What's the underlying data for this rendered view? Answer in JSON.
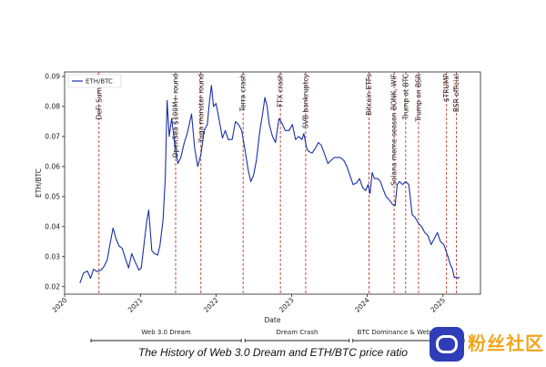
{
  "chart_data": {
    "type": "line",
    "title": "",
    "xlabel": "Date",
    "ylabel": "ETH/BTC",
    "xlim": [
      "2020-01-01",
      "2025-07-01"
    ],
    "ylim": [
      0.0175,
      0.0915
    ],
    "x_ticks": [
      "2020",
      "2021",
      "2022",
      "2023",
      "2024",
      "2025"
    ],
    "y_ticks": [
      "0.02",
      "0.03",
      "0.04",
      "0.05",
      "0.06",
      "0.07",
      "0.08",
      "0.09"
    ],
    "grid": false,
    "legend": {
      "position": "top-left",
      "entries": [
        "ETH/BTC"
      ]
    },
    "series": [
      {
        "name": "ETH/BTC",
        "color": "#1a2fa8",
        "points": [
          [
            "2020-03-15",
            0.0212
          ],
          [
            "2020-04-01",
            0.0245
          ],
          [
            "2020-04-20",
            0.0252
          ],
          [
            "2020-05-05",
            0.0228
          ],
          [
            "2020-05-20",
            0.0258
          ],
          [
            "2020-06-05",
            0.025
          ],
          [
            "2020-06-25",
            0.0255
          ],
          [
            "2020-07-10",
            0.0268
          ],
          [
            "2020-07-25",
            0.029
          ],
          [
            "2020-08-08",
            0.0345
          ],
          [
            "2020-08-22",
            0.0395
          ],
          [
            "2020-09-05",
            0.036
          ],
          [
            "2020-09-20",
            0.0335
          ],
          [
            "2020-10-05",
            0.0328
          ],
          [
            "2020-10-20",
            0.0295
          ],
          [
            "2020-11-05",
            0.0262
          ],
          [
            "2020-11-20",
            0.031
          ],
          [
            "2020-12-05",
            0.0285
          ],
          [
            "2020-12-25",
            0.0255
          ],
          [
            "2021-01-05",
            0.0262
          ],
          [
            "2021-01-20",
            0.035
          ],
          [
            "2021-02-01",
            0.042
          ],
          [
            "2021-02-10",
            0.0455
          ],
          [
            "2021-02-25",
            0.032
          ],
          [
            "2021-03-10",
            0.031
          ],
          [
            "2021-03-25",
            0.0305
          ],
          [
            "2021-04-05",
            0.0335
          ],
          [
            "2021-04-20",
            0.042
          ],
          [
            "2021-05-01",
            0.056
          ],
          [
            "2021-05-10",
            0.082
          ],
          [
            "2021-05-20",
            0.07
          ],
          [
            "2021-06-01",
            0.076
          ],
          [
            "2021-06-15",
            0.068
          ],
          [
            "2021-07-01",
            0.061
          ],
          [
            "2021-07-15",
            0.063
          ],
          [
            "2021-08-01",
            0.068
          ],
          [
            "2021-08-15",
            0.071
          ],
          [
            "2021-09-05",
            0.0775
          ],
          [
            "2021-09-20",
            0.066
          ],
          [
            "2021-10-05",
            0.06
          ],
          [
            "2021-10-20",
            0.064
          ],
          [
            "2021-11-05",
            0.072
          ],
          [
            "2021-11-20",
            0.074
          ],
          [
            "2021-12-01",
            0.082
          ],
          [
            "2021-12-10",
            0.087
          ],
          [
            "2021-12-20",
            0.08
          ],
          [
            "2022-01-01",
            0.081
          ],
          [
            "2022-01-15",
            0.076
          ],
          [
            "2022-02-01",
            0.0695
          ],
          [
            "2022-02-15",
            0.072
          ],
          [
            "2022-03-01",
            0.069
          ],
          [
            "2022-03-20",
            0.069
          ],
          [
            "2022-04-05",
            0.075
          ],
          [
            "2022-04-20",
            0.074
          ],
          [
            "2022-05-05",
            0.072
          ],
          [
            "2022-05-20",
            0.066
          ],
          [
            "2022-06-05",
            0.059
          ],
          [
            "2022-06-18",
            0.055
          ],
          [
            "2022-07-01",
            0.057
          ],
          [
            "2022-07-15",
            0.062
          ],
          [
            "2022-08-01",
            0.072
          ],
          [
            "2022-08-15",
            0.078
          ],
          [
            "2022-08-25",
            0.083
          ],
          [
            "2022-09-05",
            0.08
          ],
          [
            "2022-09-15",
            0.074
          ],
          [
            "2022-10-01",
            0.07
          ],
          [
            "2022-10-15",
            0.068
          ],
          [
            "2022-11-01",
            0.076
          ],
          [
            "2022-11-15",
            0.0745
          ],
          [
            "2022-12-01",
            0.072
          ],
          [
            "2022-12-20",
            0.072
          ],
          [
            "2023-01-05",
            0.074
          ],
          [
            "2023-01-20",
            0.069
          ],
          [
            "2023-02-05",
            0.07
          ],
          [
            "2023-02-20",
            0.069
          ],
          [
            "2023-03-01",
            0.071
          ],
          [
            "2023-03-15",
            0.066
          ],
          [
            "2023-03-25",
            0.065
          ],
          [
            "2023-04-10",
            0.0645
          ],
          [
            "2023-04-25",
            0.066
          ],
          [
            "2023-05-10",
            0.068
          ],
          [
            "2023-05-25",
            0.067
          ],
          [
            "2023-06-10",
            0.064
          ],
          [
            "2023-06-25",
            0.061
          ],
          [
            "2023-07-10",
            0.062
          ],
          [
            "2023-07-25",
            0.063
          ],
          [
            "2023-08-10",
            0.063
          ],
          [
            "2023-08-25",
            0.063
          ],
          [
            "2023-09-10",
            0.062
          ],
          [
            "2023-09-25",
            0.06
          ],
          [
            "2023-10-10",
            0.057
          ],
          [
            "2023-10-25",
            0.054
          ],
          [
            "2023-11-10",
            0.0545
          ],
          [
            "2023-11-25",
            0.056
          ],
          [
            "2023-12-10",
            0.053
          ],
          [
            "2023-12-25",
            0.052
          ],
          [
            "2024-01-05",
            0.054
          ],
          [
            "2024-01-15",
            0.051
          ],
          [
            "2024-01-25",
            0.058
          ],
          [
            "2024-02-05",
            0.056
          ],
          [
            "2024-02-20",
            0.056
          ],
          [
            "2024-03-05",
            0.055
          ],
          [
            "2024-03-15",
            0.053
          ],
          [
            "2024-04-01",
            0.05
          ],
          [
            "2024-04-15",
            0.049
          ],
          [
            "2024-05-01",
            0.0475
          ],
          [
            "2024-05-15",
            0.047
          ],
          [
            "2024-05-25",
            0.054
          ],
          [
            "2024-06-05",
            0.055
          ],
          [
            "2024-06-20",
            0.054
          ],
          [
            "2024-07-05",
            0.055
          ],
          [
            "2024-07-20",
            0.054
          ],
          [
            "2024-08-05",
            0.044
          ],
          [
            "2024-08-20",
            0.043
          ],
          [
            "2024-09-05",
            0.041
          ],
          [
            "2024-09-20",
            0.04
          ],
          [
            "2024-10-05",
            0.038
          ],
          [
            "2024-10-20",
            0.037
          ],
          [
            "2024-11-05",
            0.034
          ],
          [
            "2024-11-20",
            0.036
          ],
          [
            "2024-12-05",
            0.038
          ],
          [
            "2024-12-20",
            0.035
          ],
          [
            "2025-01-05",
            0.034
          ],
          [
            "2025-01-15",
            0.032
          ],
          [
            "2025-01-25",
            0.03
          ],
          [
            "2025-02-05",
            0.0275
          ],
          [
            "2025-02-15",
            0.026
          ],
          [
            "2025-02-25",
            0.023
          ],
          [
            "2025-03-05",
            0.0232
          ],
          [
            "2025-03-15",
            0.0228
          ],
          [
            "2025-03-22",
            0.0232
          ]
        ]
      }
    ],
    "events": [
      {
        "date": "2020-06-15",
        "label": "DeFi Summer"
      },
      {
        "date": "2021-06-20",
        "label": "OpenSea $100M+ round"
      },
      {
        "date": "2021-10-20",
        "label": "Yuga monster round"
      },
      {
        "date": "2022-05-12",
        "label": "Terra crash"
      },
      {
        "date": "2022-11-08",
        "label": "FTX crash"
      },
      {
        "date": "2023-03-10",
        "label": "SVB bankruptcy"
      },
      {
        "date": "2024-01-10",
        "label": "Bitcoin ETFs"
      },
      {
        "date": "2024-05-10",
        "label": "Solana meme season BONK, WIF"
      },
      {
        "date": "2024-07-05",
        "label": "Trump at BTC"
      },
      {
        "date": "2024-09-05",
        "label": "Trump on BSR"
      },
      {
        "date": "2025-01-18",
        "label": "$TRUMP"
      },
      {
        "date": "2025-03-07",
        "label": "BSR official"
      }
    ],
    "eras": [
      {
        "label": "Web 3.0 Dream",
        "start": "2020-01-01",
        "end": "2022-05-12"
      },
      {
        "label": "Dream Crash",
        "start": "2022-05-12",
        "end": "2023-10-15"
      },
      {
        "label": "BTC Dominance & Web 2.0 Infra",
        "start": "2023-10-15",
        "end": "2025-07-01"
      }
    ]
  },
  "caption": "The History of Web 3.0 Dream and ETH/BTC price ratio",
  "watermark": {
    "text": "粉丝社区"
  }
}
